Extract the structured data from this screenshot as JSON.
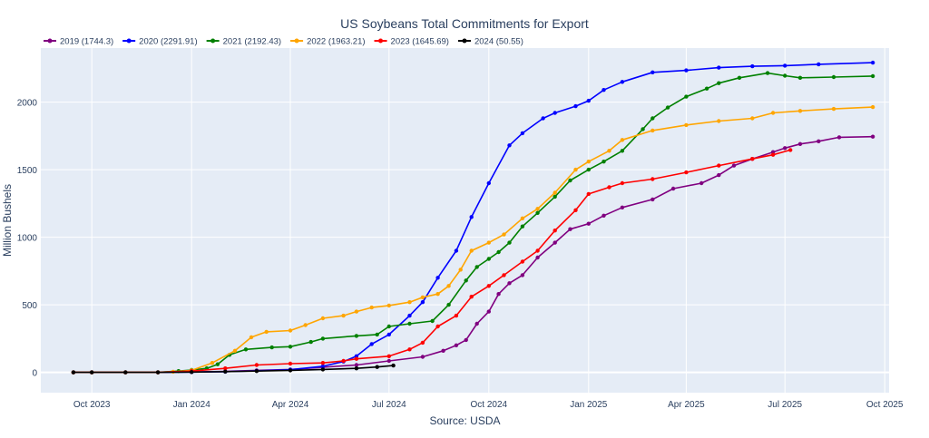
{
  "chart_data": {
    "type": "line",
    "title": "US Soybeans Total Commitments for Export",
    "xlabel": "Source: USDA",
    "ylabel": "Million Bushels",
    "x_axis": {
      "type": "date",
      "range": [
        "2023-08-15",
        "2025-10-05"
      ],
      "ticks": [
        {
          "date": "2023-10-01",
          "label": "Oct 2023"
        },
        {
          "date": "2024-01-01",
          "label": "Jan 2024"
        },
        {
          "date": "2024-04-01",
          "label": "Apr 2024"
        },
        {
          "date": "2024-07-01",
          "label": "Jul 2024"
        },
        {
          "date": "2024-10-01",
          "label": "Oct 2024"
        },
        {
          "date": "2025-01-01",
          "label": "Jan 2025"
        },
        {
          "date": "2025-04-01",
          "label": "Apr 2025"
        },
        {
          "date": "2025-07-01",
          "label": "Jul 2025"
        },
        {
          "date": "2025-10-01",
          "label": "Oct 2025"
        }
      ]
    },
    "y_axis": {
      "range": [
        -150,
        2400
      ],
      "ticks": [
        0,
        500,
        1000,
        1500,
        2000
      ]
    },
    "grid": true,
    "legend_position": "top-left",
    "series": [
      {
        "name": "2019 (1744.3)",
        "color": "#800080",
        "points": [
          [
            "2023-09-14",
            0
          ],
          [
            "2023-10-01",
            0
          ],
          [
            "2023-11-01",
            0
          ],
          [
            "2023-12-01",
            0
          ],
          [
            "2024-01-01",
            3
          ],
          [
            "2024-02-01",
            8
          ],
          [
            "2024-03-01",
            15
          ],
          [
            "2024-04-01",
            22
          ],
          [
            "2024-05-01",
            38
          ],
          [
            "2024-06-01",
            55
          ],
          [
            "2024-07-01",
            85
          ],
          [
            "2024-08-01",
            115
          ],
          [
            "2024-08-20",
            160
          ],
          [
            "2024-09-01",
            200
          ],
          [
            "2024-09-10",
            240
          ],
          [
            "2024-09-20",
            360
          ],
          [
            "2024-10-01",
            450
          ],
          [
            "2024-10-10",
            580
          ],
          [
            "2024-10-20",
            660
          ],
          [
            "2024-11-01",
            720
          ],
          [
            "2024-11-15",
            850
          ],
          [
            "2024-12-01",
            960
          ],
          [
            "2024-12-15",
            1060
          ],
          [
            "2025-01-01",
            1100
          ],
          [
            "2025-01-15",
            1160
          ],
          [
            "2025-02-01",
            1220
          ],
          [
            "2025-03-01",
            1280
          ],
          [
            "2025-03-20",
            1360
          ],
          [
            "2025-04-15",
            1400
          ],
          [
            "2025-05-01",
            1460
          ],
          [
            "2025-05-15",
            1530
          ],
          [
            "2025-06-01",
            1580
          ],
          [
            "2025-06-20",
            1630
          ],
          [
            "2025-07-01",
            1660
          ],
          [
            "2025-07-15",
            1690
          ],
          [
            "2025-08-01",
            1710
          ],
          [
            "2025-08-20",
            1740
          ],
          [
            "2025-09-20",
            1744.3
          ]
        ]
      },
      {
        "name": "2020 (2291.91)",
        "color": "#0000ff",
        "points": [
          [
            "2023-09-14",
            0
          ],
          [
            "2023-10-01",
            0
          ],
          [
            "2023-11-01",
            0
          ],
          [
            "2023-12-01",
            0
          ],
          [
            "2024-01-01",
            2
          ],
          [
            "2024-02-01",
            5
          ],
          [
            "2024-03-01",
            12
          ],
          [
            "2024-04-01",
            20
          ],
          [
            "2024-05-01",
            45
          ],
          [
            "2024-05-20",
            80
          ],
          [
            "2024-06-01",
            120
          ],
          [
            "2024-06-15",
            210
          ],
          [
            "2024-07-01",
            280
          ],
          [
            "2024-07-20",
            420
          ],
          [
            "2024-08-01",
            520
          ],
          [
            "2024-08-15",
            700
          ],
          [
            "2024-09-01",
            900
          ],
          [
            "2024-09-15",
            1150
          ],
          [
            "2024-10-01",
            1400
          ],
          [
            "2024-10-20",
            1680
          ],
          [
            "2024-11-01",
            1770
          ],
          [
            "2024-11-20",
            1880
          ],
          [
            "2024-12-01",
            1920
          ],
          [
            "2024-12-20",
            1970
          ],
          [
            "2025-01-01",
            2010
          ],
          [
            "2025-01-15",
            2090
          ],
          [
            "2025-02-01",
            2150
          ],
          [
            "2025-03-01",
            2220
          ],
          [
            "2025-04-01",
            2235
          ],
          [
            "2025-05-01",
            2255
          ],
          [
            "2025-06-01",
            2265
          ],
          [
            "2025-07-01",
            2270
          ],
          [
            "2025-08-01",
            2280
          ],
          [
            "2025-09-20",
            2291.91
          ]
        ]
      },
      {
        "name": "2021 (2192.43)",
        "color": "#008000",
        "points": [
          [
            "2023-09-14",
            0
          ],
          [
            "2023-10-01",
            0
          ],
          [
            "2023-11-01",
            0
          ],
          [
            "2023-12-01",
            0
          ],
          [
            "2023-12-20",
            10
          ],
          [
            "2024-01-01",
            18
          ],
          [
            "2024-01-15",
            30
          ],
          [
            "2024-01-25",
            60
          ],
          [
            "2024-02-05",
            130
          ],
          [
            "2024-02-20",
            170
          ],
          [
            "2024-03-15",
            185
          ],
          [
            "2024-04-01",
            190
          ],
          [
            "2024-04-20",
            225
          ],
          [
            "2024-05-01",
            250
          ],
          [
            "2024-06-01",
            270
          ],
          [
            "2024-06-20",
            280
          ],
          [
            "2024-07-01",
            340
          ],
          [
            "2024-07-20",
            360
          ],
          [
            "2024-08-10",
            380
          ],
          [
            "2024-08-25",
            500
          ],
          [
            "2024-09-10",
            680
          ],
          [
            "2024-09-20",
            780
          ],
          [
            "2024-10-01",
            840
          ],
          [
            "2024-10-10",
            890
          ],
          [
            "2024-10-20",
            960
          ],
          [
            "2024-11-01",
            1080
          ],
          [
            "2024-11-15",
            1180
          ],
          [
            "2024-12-01",
            1300
          ],
          [
            "2024-12-15",
            1420
          ],
          [
            "2025-01-01",
            1500
          ],
          [
            "2025-01-15",
            1560
          ],
          [
            "2025-02-01",
            1640
          ],
          [
            "2025-02-20",
            1800
          ],
          [
            "2025-03-01",
            1880
          ],
          [
            "2025-03-15",
            1960
          ],
          [
            "2025-04-01",
            2040
          ],
          [
            "2025-04-20",
            2100
          ],
          [
            "2025-05-01",
            2140
          ],
          [
            "2025-05-20",
            2180
          ],
          [
            "2025-06-15",
            2215
          ],
          [
            "2025-07-01",
            2195
          ],
          [
            "2025-07-15",
            2180
          ],
          [
            "2025-08-15",
            2185
          ],
          [
            "2025-09-20",
            2192.43
          ]
        ]
      },
      {
        "name": "2022 (1963.21)",
        "color": "#ffa500",
        "points": [
          [
            "2023-09-14",
            0
          ],
          [
            "2023-10-01",
            0
          ],
          [
            "2023-11-01",
            0
          ],
          [
            "2023-12-01",
            0
          ],
          [
            "2023-12-15",
            5
          ],
          [
            "2024-01-01",
            15
          ],
          [
            "2024-01-20",
            70
          ],
          [
            "2024-02-10",
            160
          ],
          [
            "2024-02-25",
            260
          ],
          [
            "2024-03-10",
            300
          ],
          [
            "2024-04-01",
            310
          ],
          [
            "2024-04-15",
            350
          ],
          [
            "2024-05-01",
            400
          ],
          [
            "2024-05-20",
            420
          ],
          [
            "2024-06-01",
            450
          ],
          [
            "2024-06-15",
            480
          ],
          [
            "2024-07-01",
            495
          ],
          [
            "2024-07-20",
            520
          ],
          [
            "2024-08-01",
            555
          ],
          [
            "2024-08-15",
            580
          ],
          [
            "2024-08-25",
            640
          ],
          [
            "2024-09-05",
            760
          ],
          [
            "2024-09-15",
            900
          ],
          [
            "2024-10-01",
            960
          ],
          [
            "2024-10-15",
            1020
          ],
          [
            "2024-11-01",
            1140
          ],
          [
            "2024-11-15",
            1210
          ],
          [
            "2024-12-01",
            1330
          ],
          [
            "2024-12-20",
            1500
          ],
          [
            "2025-01-01",
            1560
          ],
          [
            "2025-01-20",
            1640
          ],
          [
            "2025-02-01",
            1720
          ],
          [
            "2025-03-01",
            1790
          ],
          [
            "2025-04-01",
            1830
          ],
          [
            "2025-05-01",
            1860
          ],
          [
            "2025-06-01",
            1880
          ],
          [
            "2025-06-20",
            1920
          ],
          [
            "2025-07-15",
            1935
          ],
          [
            "2025-08-15",
            1950
          ],
          [
            "2025-09-20",
            1963.21
          ]
        ]
      },
      {
        "name": "2023 (1645.69)",
        "color": "#ff0000",
        "points": [
          [
            "2023-09-14",
            0
          ],
          [
            "2023-10-01",
            0
          ],
          [
            "2023-11-01",
            0
          ],
          [
            "2023-12-01",
            0
          ],
          [
            "2024-01-01",
            10
          ],
          [
            "2024-02-01",
            30
          ],
          [
            "2024-03-01",
            55
          ],
          [
            "2024-04-01",
            65
          ],
          [
            "2024-05-01",
            70
          ],
          [
            "2024-05-20",
            85
          ],
          [
            "2024-06-01",
            100
          ],
          [
            "2024-07-01",
            120
          ],
          [
            "2024-07-20",
            170
          ],
          [
            "2024-08-01",
            220
          ],
          [
            "2024-08-15",
            340
          ],
          [
            "2024-09-01",
            420
          ],
          [
            "2024-09-15",
            560
          ],
          [
            "2024-10-01",
            640
          ],
          [
            "2024-10-15",
            720
          ],
          [
            "2024-11-01",
            820
          ],
          [
            "2024-11-15",
            900
          ],
          [
            "2024-12-01",
            1050
          ],
          [
            "2024-12-20",
            1200
          ],
          [
            "2025-01-01",
            1320
          ],
          [
            "2025-01-20",
            1370
          ],
          [
            "2025-02-01",
            1400
          ],
          [
            "2025-03-01",
            1430
          ],
          [
            "2025-04-01",
            1480
          ],
          [
            "2025-05-01",
            1530
          ],
          [
            "2025-06-01",
            1580
          ],
          [
            "2025-06-20",
            1610
          ],
          [
            "2025-07-06",
            1645.69
          ]
        ]
      },
      {
        "name": "2024 (50.55)",
        "color": "#000000",
        "points": [
          [
            "2023-09-14",
            0
          ],
          [
            "2023-10-01",
            0
          ],
          [
            "2023-11-01",
            0
          ],
          [
            "2023-12-01",
            0
          ],
          [
            "2024-01-01",
            2
          ],
          [
            "2024-02-01",
            6
          ],
          [
            "2024-03-01",
            10
          ],
          [
            "2024-04-01",
            15
          ],
          [
            "2024-05-01",
            22
          ],
          [
            "2024-06-01",
            30
          ],
          [
            "2024-06-20",
            40
          ],
          [
            "2024-07-05",
            50.55
          ]
        ]
      }
    ]
  }
}
